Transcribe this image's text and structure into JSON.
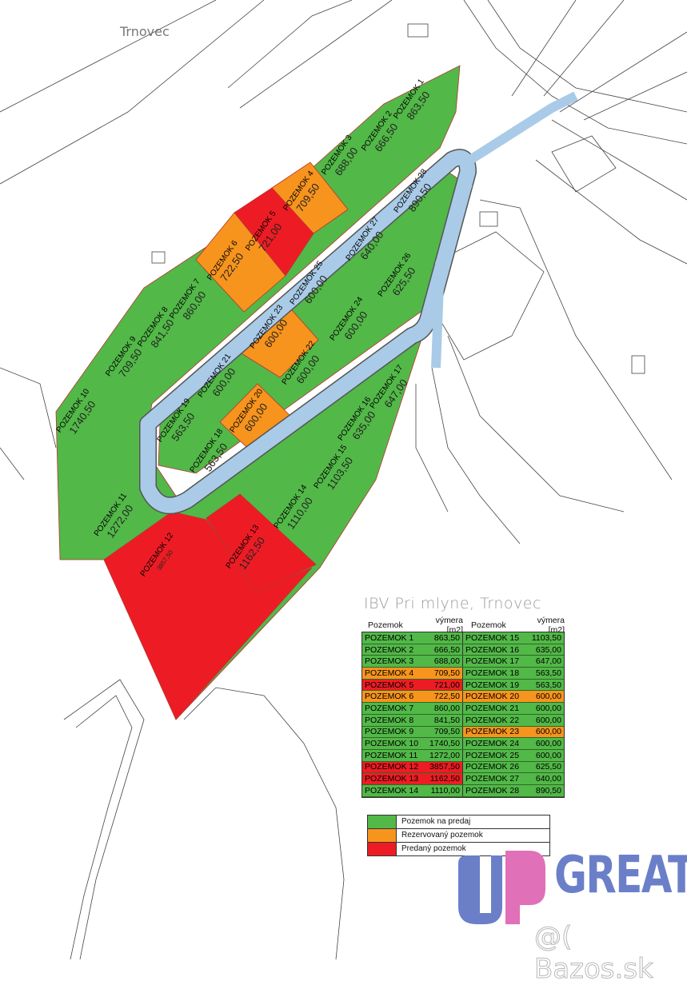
{
  "map": {
    "place_label": "Trnovec",
    "plot_prefix": "POZEMOK",
    "colors": {
      "for_sale": "#52b848",
      "reserved": "#f7941d",
      "sold": "#ed1c24",
      "road": "#a9cbe8",
      "road_edge": "#555555"
    }
  },
  "table": {
    "title": "IBV Pri mlyne, Trnovec",
    "headers": [
      "Pozemok",
      "výmera [m2]",
      "Pozemok",
      "výmera [m2]"
    ],
    "rows": [
      {
        "name": "POZEMOK 1",
        "area": "863,50",
        "status": "for_sale"
      },
      {
        "name": "POZEMOK 2",
        "area": "666,50",
        "status": "for_sale"
      },
      {
        "name": "POZEMOK 3",
        "area": "688,00",
        "status": "for_sale"
      },
      {
        "name": "POZEMOK 4",
        "area": "709,50",
        "status": "reserved"
      },
      {
        "name": "POZEMOK 5",
        "area": "721,00",
        "status": "sold"
      },
      {
        "name": "POZEMOK 6",
        "area": "722,50",
        "status": "reserved"
      },
      {
        "name": "POZEMOK 7",
        "area": "860,00",
        "status": "for_sale"
      },
      {
        "name": "POZEMOK 8",
        "area": "841,50",
        "status": "for_sale"
      },
      {
        "name": "POZEMOK 9",
        "area": "709,50",
        "status": "for_sale"
      },
      {
        "name": "POZEMOK 10",
        "area": "1740,50",
        "status": "for_sale"
      },
      {
        "name": "POZEMOK 11",
        "area": "1272,00",
        "status": "for_sale"
      },
      {
        "name": "POZEMOK 12",
        "area": "3857,50",
        "status": "sold"
      },
      {
        "name": "POZEMOK 13",
        "area": "1162,50",
        "status": "sold"
      },
      {
        "name": "POZEMOK 14",
        "area": "1110,00",
        "status": "for_sale"
      },
      {
        "name": "POZEMOK 15",
        "area": "1103,50",
        "status": "for_sale"
      },
      {
        "name": "POZEMOK 16",
        "area": "635,00",
        "status": "for_sale"
      },
      {
        "name": "POZEMOK 17",
        "area": "647,00",
        "status": "for_sale"
      },
      {
        "name": "POZEMOK 18",
        "area": "563,50",
        "status": "for_sale"
      },
      {
        "name": "POZEMOK 19",
        "area": "563,50",
        "status": "for_sale"
      },
      {
        "name": "POZEMOK 20",
        "area": "600,00",
        "status": "reserved"
      },
      {
        "name": "POZEMOK 21",
        "area": "600,00",
        "status": "for_sale"
      },
      {
        "name": "POZEMOK 22",
        "area": "600,00",
        "status": "for_sale"
      },
      {
        "name": "POZEMOK 23",
        "area": "600,00",
        "status": "reserved"
      },
      {
        "name": "POZEMOK 24",
        "area": "600,00",
        "status": "for_sale"
      },
      {
        "name": "POZEMOK 25",
        "area": "600,00",
        "status": "for_sale"
      },
      {
        "name": "POZEMOK 26",
        "area": "625,50",
        "status": "for_sale"
      },
      {
        "name": "POZEMOK 27",
        "area": "640,00",
        "status": "for_sale"
      },
      {
        "name": "POZEMOK 28",
        "area": "890,50",
        "status": "for_sale"
      }
    ]
  },
  "legend": [
    {
      "label": "Pozemok na predaj",
      "status": "for_sale"
    },
    {
      "label": "Rezervovaný pozemok",
      "status": "reserved"
    },
    {
      "label": "Predaný pozemok",
      "status": "sold"
    }
  ],
  "branding": {
    "logo_text": "GREAT",
    "watermark": "@( Bazos.sk",
    "logo_colors": {
      "blue": "#6b7fc9",
      "pink": "#e070b8"
    }
  }
}
